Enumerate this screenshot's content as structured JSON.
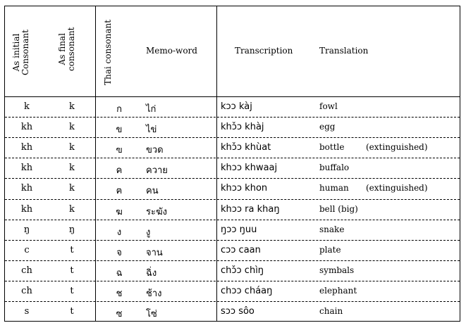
{
  "headers": {
    "as_initial": [
      "As initial",
      "Consonant"
    ],
    "as_final": [
      "As final",
      "consonant"
    ],
    "thai_consonant": "Thai consonant",
    "memo_word": "Memo-word",
    "transcription": "Transcription",
    "translation": "Translation"
  },
  "rows": [
    {
      "initial": "k",
      "final": "k",
      "thai": "ก",
      "memo": "ไก่",
      "transcription": "kɔɔ kàj",
      "translation": "fowl",
      "note": ""
    },
    {
      "initial": "kh",
      "final": "k",
      "thai": "ข",
      "memo": "ไข่",
      "transcription": "khɔ̌ɔ khàj",
      "translation": "egg",
      "note": ""
    },
    {
      "initial": "kh",
      "final": "k",
      "thai": "ฃ",
      "memo": "ขวด",
      "transcription": "khɔ̌ɔ khùat",
      "translation": "bottle",
      "note": "(extinguished)"
    },
    {
      "initial": "kh",
      "final": "k",
      "thai": "ค",
      "memo": "ควาย",
      "transcription": "khɔɔ khwaaj",
      "translation": "buffalo",
      "note": ""
    },
    {
      "initial": "kh",
      "final": "k",
      "thai": "ฅ",
      "memo": "คน",
      "transcription": "khɔɔ khon",
      "translation": "human",
      "note": "(extinguished)"
    },
    {
      "initial": "kh",
      "final": "k",
      "thai": "ฆ",
      "memo": "ระฆัง",
      "transcription": "khɔɔ ra khaŋ",
      "translation": "bell (big)",
      "note": ""
    },
    {
      "initial": "ŋ",
      "final": "ŋ",
      "thai": "ง",
      "memo": "งู",
      "transcription": "ŋɔɔ ŋuu",
      "translation": "snake",
      "note": ""
    },
    {
      "initial": "c",
      "final": "t",
      "thai": "จ",
      "memo": "จาน",
      "transcription": "cɔɔ caan",
      "translation": "plate",
      "note": ""
    },
    {
      "initial": "ch",
      "final": "t",
      "thai": "ฉ",
      "memo": "ฉิ่ง",
      "transcription": "chɔ̌ɔ chìŋ",
      "translation": "symbals",
      "note": ""
    },
    {
      "initial": "ch",
      "final": "t",
      "thai": "ช",
      "memo": "ช้าง",
      "transcription": "chɔɔ cháaŋ",
      "translation": "elephant",
      "note": ""
    },
    {
      "initial": "s",
      "final": "t",
      "thai": "ซ",
      "memo": "โซ่",
      "transcription": "sɔɔ sôo",
      "translation": "chain",
      "note": ""
    }
  ]
}
